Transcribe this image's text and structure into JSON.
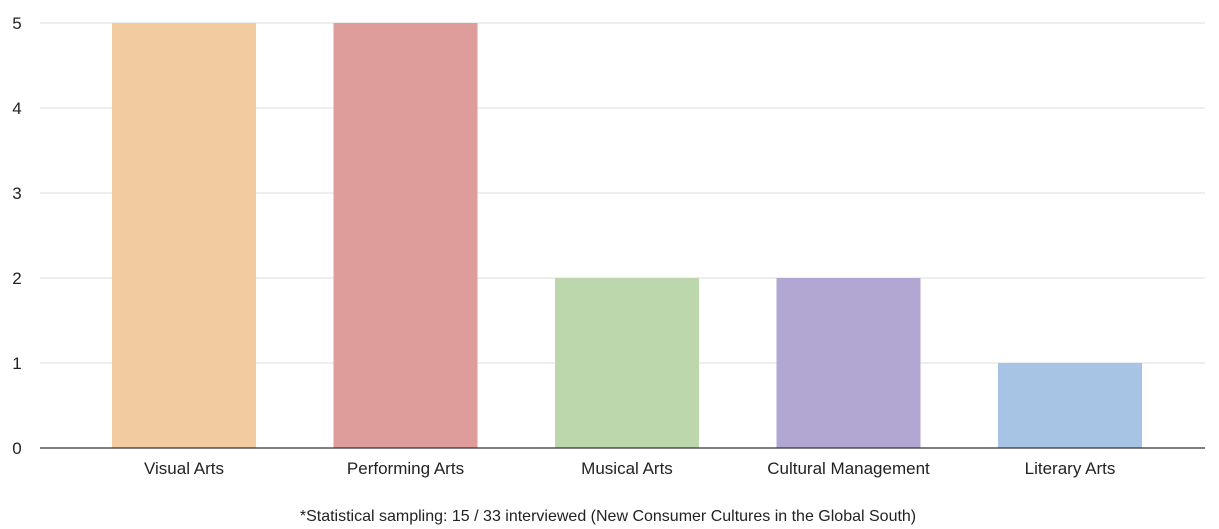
{
  "chart_data": {
    "type": "bar",
    "categories": [
      "Visual Arts",
      "Performing Arts",
      "Musical Arts",
      "Cultural Management",
      "Literary Arts"
    ],
    "values": [
      5,
      5,
      2,
      2,
      1
    ],
    "colors": [
      "#f2cba0",
      "#de9c9b",
      "#bdd7ac",
      "#b2a7d3",
      "#a8c4e4"
    ],
    "title": "",
    "xlabel": "",
    "ylabel": "",
    "ylim": [
      0,
      5
    ],
    "yticks": [
      "0",
      "1",
      "2",
      "3",
      "4",
      "5"
    ],
    "grid": true,
    "legend": "none",
    "footnote": "*Statistical sampling: 15 / 33 interviewed (New Consumer Cultures in the Global South)"
  }
}
